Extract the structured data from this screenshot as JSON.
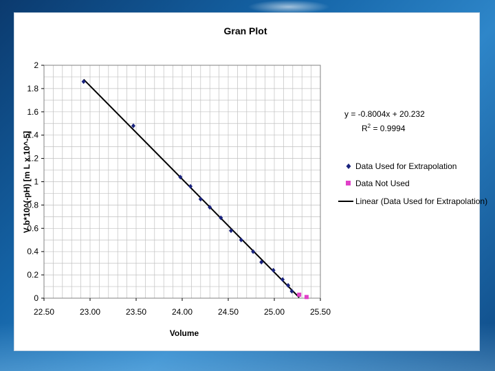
{
  "chart_data": {
    "type": "scatter",
    "title": "Gran Plot",
    "xlabel": "Volume",
    "ylabel": "V b*10^(-pH) [m L  x  10^-5]",
    "xlim": [
      22.5,
      25.5
    ],
    "ylim": [
      0,
      2
    ],
    "x_ticks": [
      "22.50",
      "23.00",
      "23.50",
      "24.00",
      "24.50",
      "25.00",
      "25.50"
    ],
    "y_ticks": [
      "0",
      "0.2",
      "0.4",
      "0.6",
      "0.8",
      "1",
      "1.2",
      "1.4",
      "1.6",
      "1.8",
      "2"
    ],
    "grid": true,
    "legend_position": "right",
    "series": [
      {
        "name": "Data Used for Extrapolation",
        "marker": "diamond",
        "color": "#1a237e",
        "points": [
          [
            22.93,
            1.86
          ],
          [
            23.47,
            1.48
          ],
          [
            23.98,
            1.04
          ],
          [
            24.09,
            0.96
          ],
          [
            24.2,
            0.85
          ],
          [
            24.3,
            0.78
          ],
          [
            24.42,
            0.69
          ],
          [
            24.53,
            0.58
          ],
          [
            24.64,
            0.5
          ],
          [
            24.77,
            0.4
          ],
          [
            24.86,
            0.31
          ],
          [
            24.99,
            0.24
          ],
          [
            25.09,
            0.16
          ],
          [
            25.15,
            0.11
          ],
          [
            25.19,
            0.06
          ]
        ]
      },
      {
        "name": "Data Not Used",
        "marker": "square",
        "color": "#e040c8",
        "points": [
          [
            25.27,
            0.03
          ],
          [
            25.35,
            0.01
          ]
        ]
      }
    ],
    "trendline": {
      "name": "Linear (Data Used for Extrapolation)",
      "slope": -0.8004,
      "intercept": 20.232,
      "x_range": [
        22.93,
        25.27
      ],
      "color": "#000000",
      "equation": "y = -0.8004x + 20.232",
      "r2_prefix": "R",
      "r2_sup": "2",
      "r2_value": " = 0.9994"
    }
  }
}
